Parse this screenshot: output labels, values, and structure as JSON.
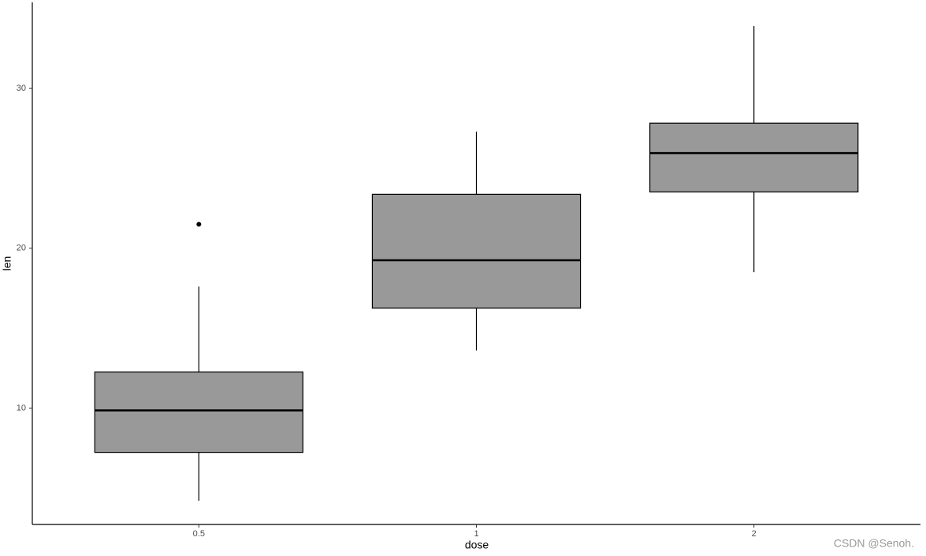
{
  "chart_data": {
    "type": "box",
    "x_label": "dose",
    "y_label": "len",
    "categories": [
      "0.5",
      "1",
      "2"
    ],
    "boxes": [
      {
        "min": 4.2,
        "q1": 7.225,
        "median": 9.85,
        "q3": 12.25,
        "max": 17.6,
        "outliers": [
          21.5
        ]
      },
      {
        "min": 13.6,
        "q1": 16.25,
        "median": 19.25,
        "q3": 23.375,
        "max": 27.3,
        "outliers": []
      },
      {
        "min": 18.5,
        "q1": 23.525,
        "median": 25.95,
        "q3": 27.825,
        "max": 33.9,
        "outliers": []
      }
    ],
    "color": "#999999",
    "ylim": [
      2.715,
      35.385
    ],
    "yticks": [
      10,
      20,
      30
    ],
    "grid": false,
    "watermark": "CSDN @Senoh."
  }
}
